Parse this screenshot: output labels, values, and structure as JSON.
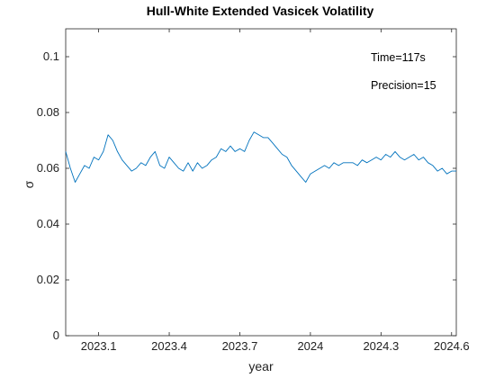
{
  "chart_data": {
    "type": "line",
    "title": "Hull-White Extended Vasicek Volatility",
    "xlabel": "year",
    "ylabel": "σ",
    "xlim": [
      2022.96,
      2024.62
    ],
    "ylim": [
      0,
      0.11
    ],
    "grid": false,
    "legend": "none",
    "x_tick_values": [
      2023.1,
      2023.4,
      2023.7,
      2024.0,
      2024.3,
      2024.6
    ],
    "x_tick_labels": [
      "2023.1",
      "2023.4",
      "2023.7",
      "2024",
      "2024.3",
      "2024.6"
    ],
    "y_tick_values": [
      0,
      0.02,
      0.04,
      0.06,
      0.08,
      0.1
    ],
    "y_tick_labels": [
      "0",
      "0.02",
      "0.04",
      "0.06",
      "0.08",
      "0.1"
    ],
    "annotations": [
      "Time=117s",
      "Precision=15"
    ],
    "series": [
      {
        "color": "#0072bd",
        "x": [
          2022.96,
          2022.98,
          2023.0,
          2023.02,
          2023.04,
          2023.06,
          2023.08,
          2023.1,
          2023.12,
          2023.14,
          2023.16,
          2023.18,
          2023.2,
          2023.22,
          2023.24,
          2023.26,
          2023.28,
          2023.3,
          2023.32,
          2023.34,
          2023.36,
          2023.38,
          2023.4,
          2023.42,
          2023.44,
          2023.46,
          2023.48,
          2023.5,
          2023.52,
          2023.54,
          2023.56,
          2023.58,
          2023.6,
          2023.62,
          2023.64,
          2023.66,
          2023.68,
          2023.7,
          2023.72,
          2023.74,
          2023.76,
          2023.78,
          2023.8,
          2023.82,
          2023.84,
          2023.86,
          2023.88,
          2023.9,
          2023.92,
          2023.94,
          2023.96,
          2023.98,
          2024.0,
          2024.02,
          2024.04,
          2024.06,
          2024.08,
          2024.1,
          2024.12,
          2024.14,
          2024.16,
          2024.18,
          2024.2,
          2024.22,
          2024.24,
          2024.26,
          2024.28,
          2024.3,
          2024.32,
          2024.34,
          2024.36,
          2024.38,
          2024.4,
          2024.42,
          2024.44,
          2024.46,
          2024.48,
          2024.5,
          2024.52,
          2024.54,
          2024.56,
          2024.58,
          2024.6,
          2024.62
        ],
        "y": [
          0.066,
          0.06,
          0.055,
          0.058,
          0.061,
          0.06,
          0.064,
          0.063,
          0.066,
          0.072,
          0.07,
          0.066,
          0.063,
          0.061,
          0.059,
          0.06,
          0.062,
          0.061,
          0.064,
          0.066,
          0.061,
          0.06,
          0.064,
          0.062,
          0.06,
          0.059,
          0.062,
          0.059,
          0.062,
          0.06,
          0.061,
          0.063,
          0.064,
          0.067,
          0.066,
          0.068,
          0.066,
          0.067,
          0.066,
          0.07,
          0.073,
          0.072,
          0.071,
          0.071,
          0.069,
          0.067,
          0.065,
          0.064,
          0.061,
          0.059,
          0.057,
          0.055,
          0.058,
          0.059,
          0.06,
          0.061,
          0.06,
          0.062,
          0.061,
          0.062,
          0.062,
          0.062,
          0.061,
          0.063,
          0.062,
          0.063,
          0.064,
          0.063,
          0.065,
          0.064,
          0.066,
          0.064,
          0.063,
          0.064,
          0.065,
          0.063,
          0.064,
          0.062,
          0.061,
          0.059,
          0.06,
          0.058,
          0.059,
          0.059
        ]
      }
    ]
  }
}
